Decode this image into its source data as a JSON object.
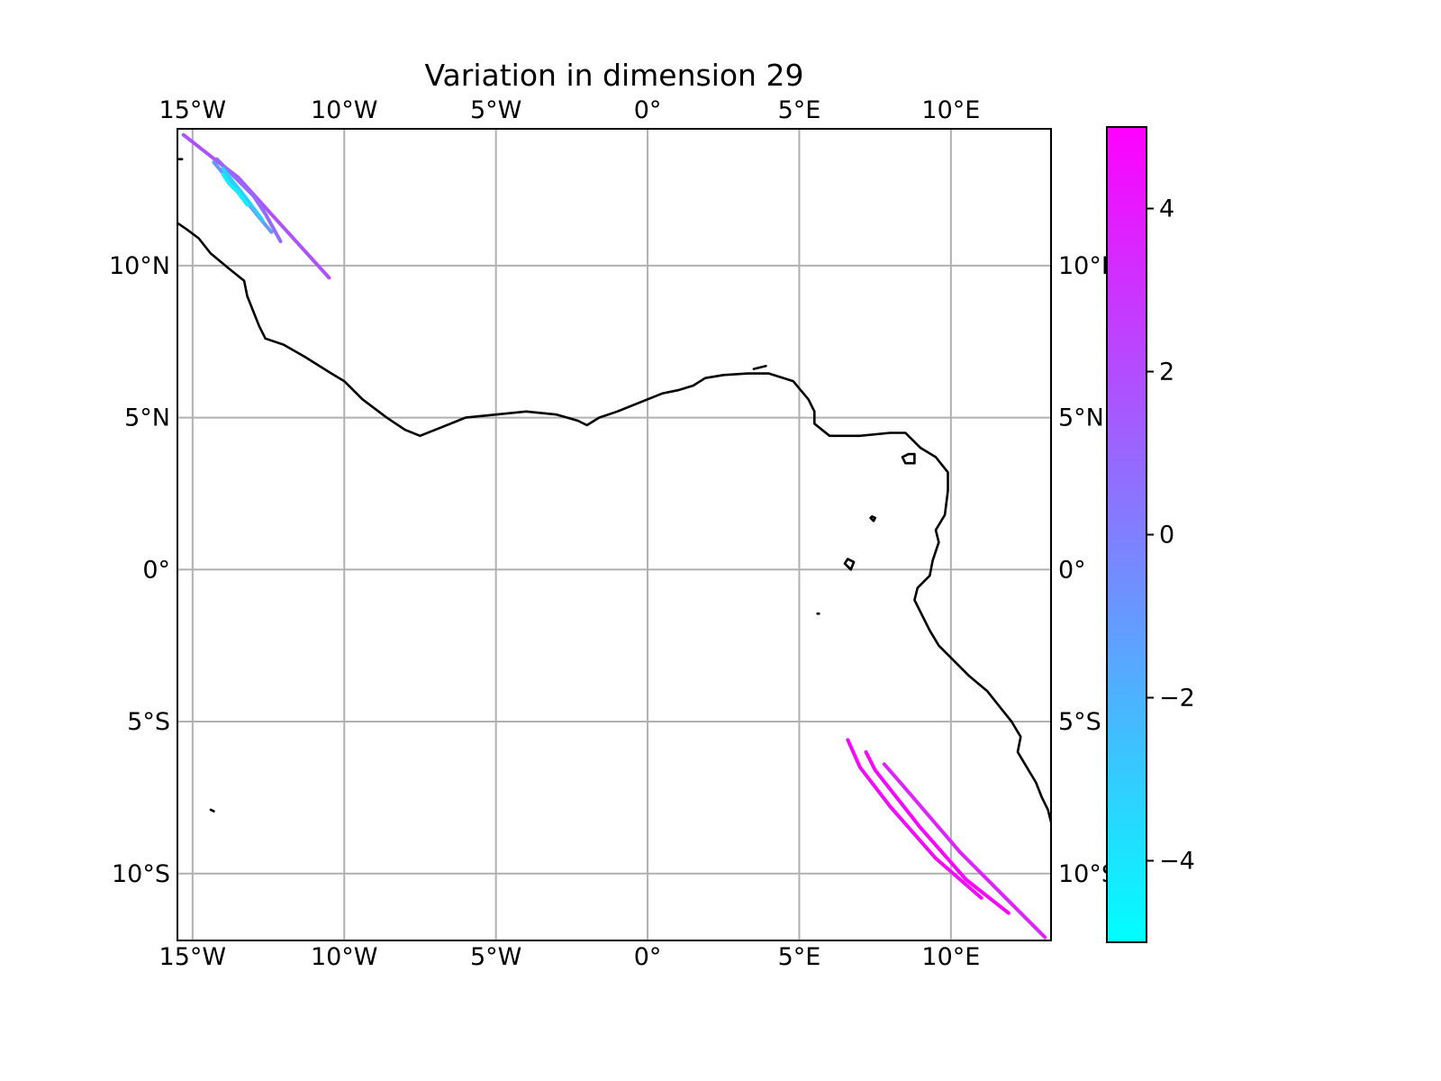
{
  "title": "Variation in dimension 29",
  "map": {
    "lon_range": [
      -15.5,
      13.3
    ],
    "lat_range": [
      -12.2,
      14.5
    ],
    "x_ticks": [
      {
        "value": -15,
        "label": "15°W"
      },
      {
        "value": -10,
        "label": "10°W"
      },
      {
        "value": -5,
        "label": "5°W"
      },
      {
        "value": 0,
        "label": "0°"
      },
      {
        "value": 5,
        "label": "5°E"
      },
      {
        "value": 10,
        "label": "10°E"
      }
    ],
    "y_ticks": [
      {
        "value": 10,
        "label": "10°N"
      },
      {
        "value": 5,
        "label": "5°N"
      },
      {
        "value": 0,
        "label": "0°"
      },
      {
        "value": -5,
        "label": "5°S"
      },
      {
        "value": -10,
        "label": "10°S"
      }
    ],
    "gridlines": true,
    "coastline_color": "#000000",
    "gridline_color": "#b0b0b0"
  },
  "colorbar": {
    "colormap": "cool",
    "min": -5,
    "max": 5,
    "low_color": "#00ffff",
    "high_color": "#ff00ff",
    "ticks": [
      {
        "value": 4,
        "label": "4"
      },
      {
        "value": 2,
        "label": "2"
      },
      {
        "value": 0,
        "label": "0"
      },
      {
        "value": -2,
        "label": "−2"
      },
      {
        "value": -4,
        "label": "−4"
      }
    ]
  },
  "chart_data": {
    "type": "map-tracks",
    "title": "Variation in dimension 29",
    "series": [
      {
        "value": 1.8,
        "points": [
          [
            -15.3,
            14.3
          ],
          [
            -14.4,
            13.6
          ],
          [
            -13.5,
            12.9
          ],
          [
            -12.5,
            11.8
          ],
          [
            -11.5,
            10.7
          ],
          [
            -10.5,
            9.6
          ]
        ]
      },
      {
        "value": 0.8,
        "points": [
          [
            -14.2,
            13.5
          ],
          [
            -13.6,
            12.9
          ],
          [
            -13.0,
            12.3
          ],
          [
            -12.6,
            11.7
          ],
          [
            -12.1,
            10.8
          ]
        ]
      },
      {
        "value": -1.0,
        "points": [
          [
            -14.3,
            13.4
          ],
          [
            -13.8,
            12.8
          ],
          [
            -13.3,
            12.2
          ],
          [
            -12.9,
            11.7
          ],
          [
            -12.4,
            11.1
          ]
        ]
      },
      {
        "value": -3.0,
        "points": [
          [
            -14.0,
            13.2
          ],
          [
            -13.7,
            12.8
          ],
          [
            -13.3,
            12.3
          ],
          [
            -13.0,
            11.9
          ],
          [
            -12.7,
            11.5
          ]
        ]
      },
      {
        "value": -4.4,
        "points": [
          [
            -14.0,
            13.0
          ],
          [
            -13.8,
            12.7
          ],
          [
            -13.5,
            12.4
          ],
          [
            -13.2,
            12.0
          ]
        ]
      },
      {
        "value": 4.6,
        "points": [
          [
            6.6,
            -5.6
          ],
          [
            7.0,
            -6.5
          ],
          [
            8.0,
            -7.8
          ],
          [
            9.5,
            -9.5
          ],
          [
            11.0,
            -10.8
          ]
        ]
      },
      {
        "value": 4.8,
        "points": [
          [
            7.2,
            -6.0
          ],
          [
            7.5,
            -6.6
          ],
          [
            9.0,
            -8.5
          ],
          [
            10.5,
            -10.2
          ],
          [
            11.9,
            -11.3
          ]
        ]
      },
      {
        "value": 3.6,
        "points": [
          [
            7.8,
            -6.4
          ],
          [
            8.5,
            -7.2
          ],
          [
            10.3,
            -9.3
          ],
          [
            13.1,
            -12.1
          ]
        ]
      }
    ],
    "coastlines": [
      [
        [
          -15.5,
          11.4
        ],
        [
          -15.2,
          11.2
        ],
        [
          -14.8,
          10.9
        ],
        [
          -14.4,
          10.4
        ],
        [
          -13.8,
          9.9
        ],
        [
          -13.3,
          9.5
        ],
        [
          -13.2,
          9.0
        ],
        [
          -13.0,
          8.5
        ],
        [
          -12.8,
          8.0
        ],
        [
          -12.6,
          7.6
        ],
        [
          -12.0,
          7.4
        ],
        [
          -11.3,
          7.0
        ],
        [
          -10.5,
          6.5
        ],
        [
          -10.0,
          6.2
        ],
        [
          -9.4,
          5.6
        ],
        [
          -8.6,
          5.0
        ],
        [
          -8.0,
          4.6
        ],
        [
          -7.5,
          4.4
        ],
        [
          -7.0,
          4.6
        ],
        [
          -6.0,
          5.0
        ],
        [
          -5.0,
          5.1
        ],
        [
          -4.0,
          5.2
        ],
        [
          -3.0,
          5.1
        ],
        [
          -2.3,
          4.9
        ],
        [
          -2.0,
          4.75
        ],
        [
          -1.6,
          5.0
        ],
        [
          -1.0,
          5.2
        ],
        [
          0.0,
          5.6
        ],
        [
          0.5,
          5.8
        ],
        [
          1.0,
          5.9
        ],
        [
          1.5,
          6.05
        ],
        [
          1.9,
          6.3
        ],
        [
          2.5,
          6.4
        ],
        [
          3.3,
          6.45
        ],
        [
          4.0,
          6.45
        ],
        [
          4.8,
          6.2
        ],
        [
          5.3,
          5.6
        ],
        [
          5.5,
          5.2
        ],
        [
          5.5,
          4.8
        ],
        [
          6.0,
          4.4
        ],
        [
          7.0,
          4.4
        ],
        [
          8.0,
          4.5
        ],
        [
          8.5,
          4.5
        ],
        [
          9.0,
          4.0
        ],
        [
          9.5,
          3.7
        ],
        [
          9.9,
          3.2
        ],
        [
          9.9,
          2.6
        ],
        [
          9.8,
          1.8
        ],
        [
          9.5,
          1.3
        ],
        [
          9.6,
          0.9
        ],
        [
          9.4,
          0.3
        ],
        [
          9.3,
          -0.2
        ],
        [
          8.9,
          -0.6
        ],
        [
          8.8,
          -1.0
        ],
        [
          9.3,
          -2.0
        ],
        [
          9.6,
          -2.5
        ],
        [
          10.0,
          -2.9
        ],
        [
          10.6,
          -3.5
        ],
        [
          11.2,
          -4.0
        ],
        [
          11.6,
          -4.5
        ],
        [
          12.0,
          -5.0
        ],
        [
          12.3,
          -5.5
        ],
        [
          12.2,
          -6.0
        ],
        [
          12.5,
          -6.5
        ],
        [
          12.8,
          -7.0
        ],
        [
          13.0,
          -7.5
        ],
        [
          13.2,
          -7.9
        ],
        [
          13.3,
          -8.3
        ]
      ],
      [
        [
          8.4,
          3.7
        ],
        [
          8.5,
          3.5
        ],
        [
          8.8,
          3.5
        ],
        [
          8.8,
          3.8
        ],
        [
          8.6,
          3.8
        ],
        [
          8.4,
          3.7
        ]
      ],
      [
        [
          6.5,
          0.2
        ],
        [
          6.7,
          0.0
        ],
        [
          6.8,
          0.25
        ],
        [
          6.6,
          0.35
        ],
        [
          6.5,
          0.2
        ]
      ],
      [
        [
          7.35,
          1.7
        ],
        [
          7.45,
          1.6
        ],
        [
          7.5,
          1.7
        ],
        [
          7.4,
          1.75
        ],
        [
          7.35,
          1.7
        ]
      ],
      [
        [
          5.6,
          -1.45
        ],
        [
          5.65,
          -1.45
        ]
      ],
      [
        [
          -14.4,
          -7.9
        ],
        [
          -14.3,
          -7.95
        ]
      ],
      [
        [
          -15.5,
          13.5
        ],
        [
          -15.35,
          13.5
        ]
      ],
      [
        [
          3.5,
          6.6
        ],
        [
          3.9,
          6.7
        ]
      ]
    ]
  }
}
